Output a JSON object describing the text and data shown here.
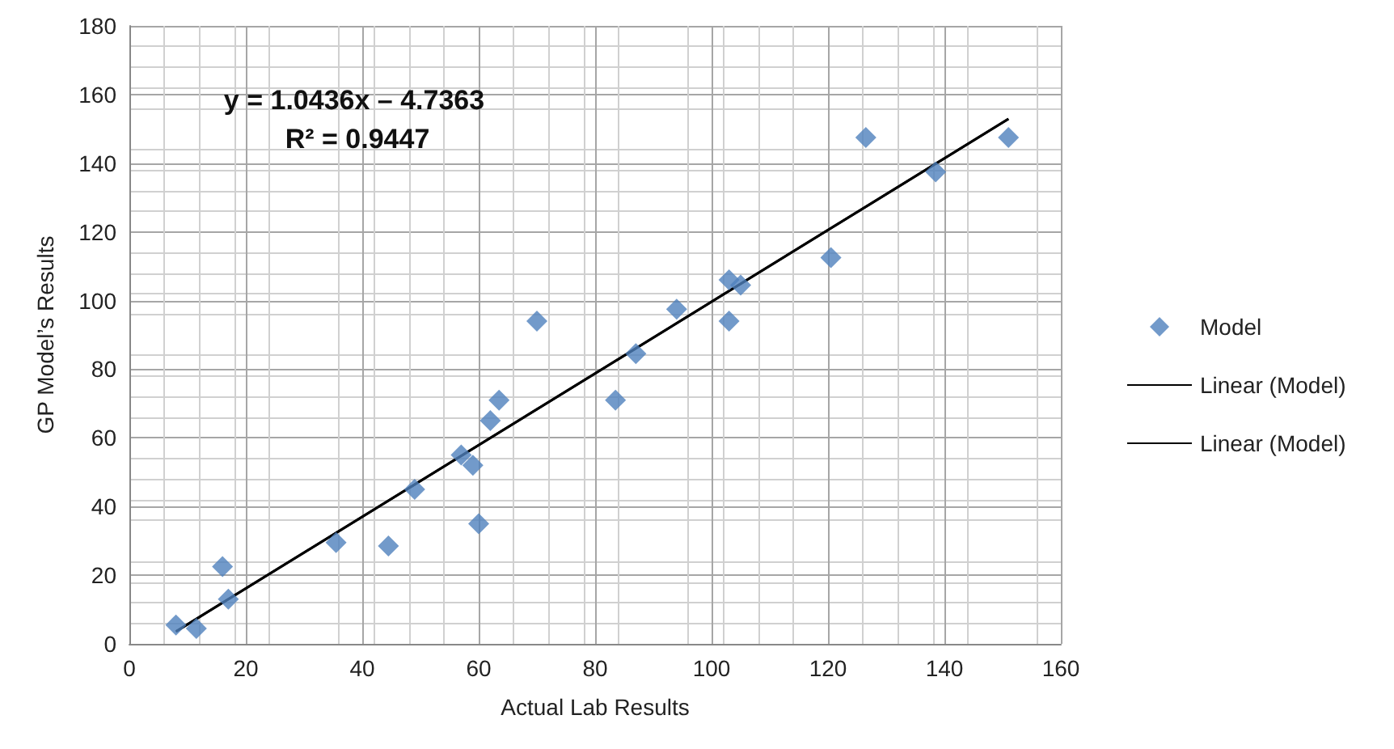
{
  "chart_data": {
    "type": "scatter",
    "xlabel": "Actual Lab Results",
    "ylabel": "GP Model’s Results",
    "annotations": [
      "y = 1.0436x – 4.7363",
      "R² = 0.9447"
    ],
    "xlim": [
      0,
      160
    ],
    "xticks": [
      0,
      20,
      40,
      60,
      80,
      100,
      120,
      140,
      160
    ],
    "ylim": [
      0,
      180
    ],
    "yticks": [
      0,
      20,
      40,
      60,
      80,
      100,
      120,
      140,
      160,
      180
    ],
    "grid": true,
    "legend": "right",
    "marker": "diamond",
    "series": [
      {
        "name": "Model",
        "color": "#4f81bd",
        "x": [
          8,
          11.5,
          16,
          17,
          35.5,
          44.5,
          49,
          57,
          59,
          60,
          62,
          63.5,
          70,
          83.5,
          87,
          94,
          103,
          103,
          105,
          120.5,
          126.5,
          138.5,
          151
        ],
        "values": [
          5.5,
          4.5,
          22.5,
          13,
          29.5,
          28.5,
          45,
          55,
          52,
          35,
          65,
          71,
          94,
          71,
          84.5,
          97.5,
          94,
          106,
          104.5,
          112.5,
          147.5,
          137.5,
          147.5
        ]
      },
      {
        "name": "Linear (Model)",
        "type": "line",
        "color": "#000000",
        "marker": "none",
        "line_style": "solid",
        "x": [
          8,
          151
        ],
        "values": [
          3.6,
          152.9
        ]
      },
      {
        "name": "Linear (Model)",
        "type": "line",
        "color": "#000000",
        "marker": "none",
        "line_style": "solid",
        "x": [
          8,
          151
        ],
        "values": [
          3.6,
          152.9
        ]
      }
    ]
  }
}
